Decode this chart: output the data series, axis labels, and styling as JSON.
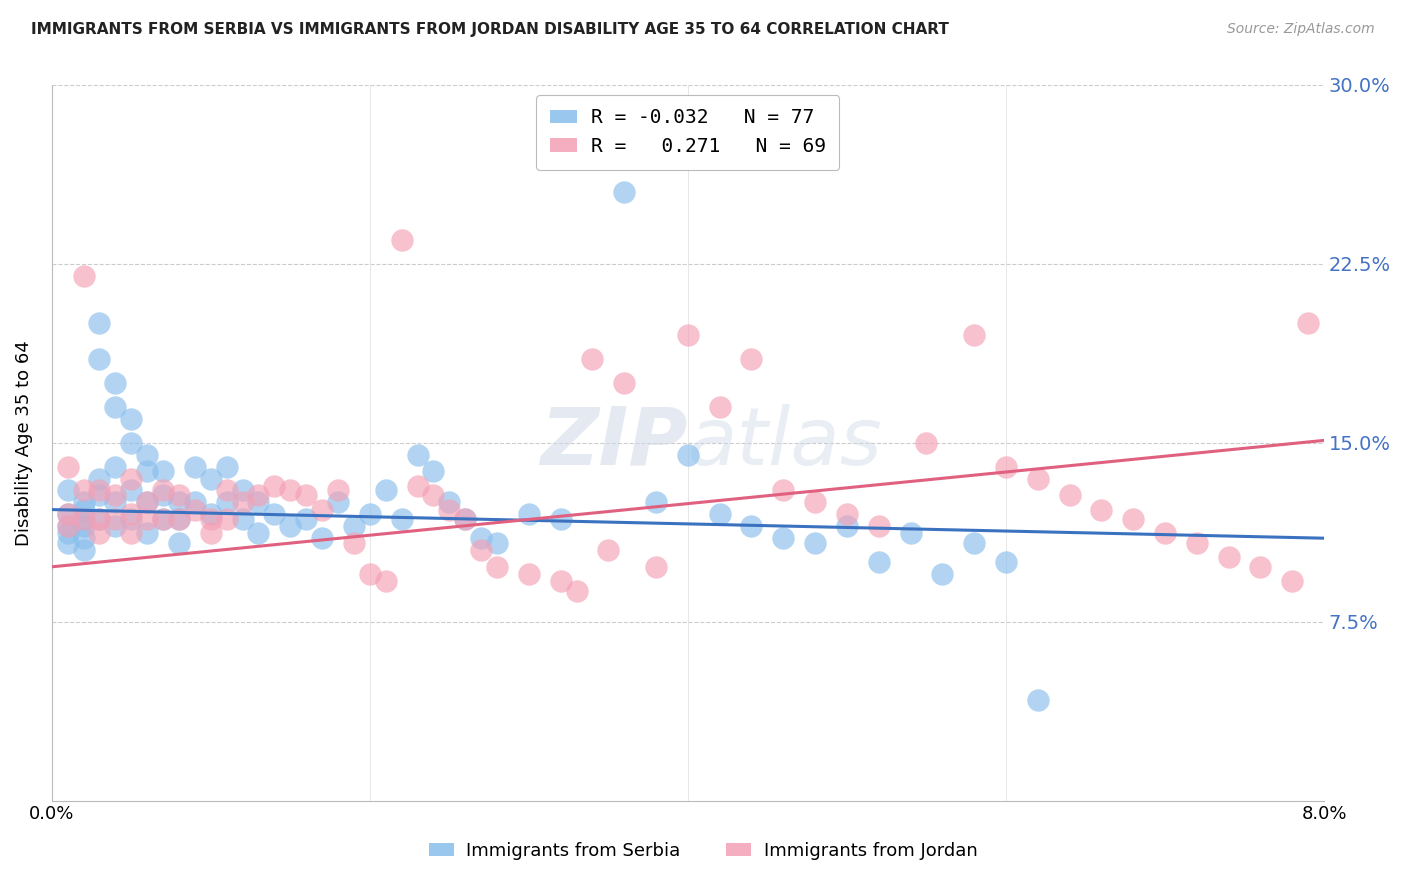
{
  "title": "IMMIGRANTS FROM SERBIA VS IMMIGRANTS FROM JORDAN DISABILITY AGE 35 TO 64 CORRELATION CHART",
  "source": "Source: ZipAtlas.com",
  "ylabel": "Disability Age 35 to 64",
  "xlim": [
    0.0,
    0.08
  ],
  "ylim": [
    0.0,
    0.3
  ],
  "yticks": [
    0.075,
    0.15,
    0.225,
    0.3
  ],
  "ytick_labels": [
    "7.5%",
    "15.0%",
    "22.5%",
    "30.0%"
  ],
  "legend_r_serbia": "-0.032",
  "legend_n_serbia": "77",
  "legend_r_jordan": "0.271",
  "legend_n_jordan": "69",
  "color_serbia": "#89BEEC",
  "color_jordan": "#F4A0B5",
  "line_color_serbia": "#3B72C0",
  "line_color_jordan": "#E06080",
  "background_color": "#ffffff",
  "serbia_line_x0": 0.0,
  "serbia_line_y0": 0.122,
  "serbia_line_x1": 0.08,
  "serbia_line_y1": 0.11,
  "jordan_line_x0": 0.0,
  "jordan_line_y0": 0.098,
  "jordan_line_x1": 0.08,
  "jordan_line_y1": 0.151,
  "serbia_x": [
    0.001,
    0.001,
    0.001,
    0.001,
    0.001,
    0.002,
    0.002,
    0.002,
    0.002,
    0.002,
    0.002,
    0.003,
    0.003,
    0.003,
    0.003,
    0.003,
    0.004,
    0.004,
    0.004,
    0.004,
    0.004,
    0.005,
    0.005,
    0.005,
    0.005,
    0.006,
    0.006,
    0.006,
    0.006,
    0.007,
    0.007,
    0.007,
    0.008,
    0.008,
    0.008,
    0.009,
    0.009,
    0.01,
    0.01,
    0.011,
    0.011,
    0.012,
    0.012,
    0.013,
    0.013,
    0.014,
    0.015,
    0.016,
    0.017,
    0.018,
    0.019,
    0.02,
    0.021,
    0.022,
    0.023,
    0.024,
    0.025,
    0.026,
    0.027,
    0.028,
    0.03,
    0.032,
    0.034,
    0.036,
    0.038,
    0.04,
    0.042,
    0.044,
    0.046,
    0.048,
    0.05,
    0.052,
    0.054,
    0.056,
    0.058,
    0.06,
    0.062
  ],
  "serbia_y": [
    0.12,
    0.115,
    0.112,
    0.108,
    0.13,
    0.118,
    0.125,
    0.11,
    0.105,
    0.115,
    0.122,
    0.2,
    0.185,
    0.135,
    0.128,
    0.118,
    0.175,
    0.165,
    0.14,
    0.125,
    0.115,
    0.16,
    0.15,
    0.13,
    0.118,
    0.145,
    0.138,
    0.125,
    0.112,
    0.138,
    0.128,
    0.118,
    0.125,
    0.118,
    0.108,
    0.14,
    0.125,
    0.135,
    0.12,
    0.14,
    0.125,
    0.13,
    0.118,
    0.125,
    0.112,
    0.12,
    0.115,
    0.118,
    0.11,
    0.125,
    0.115,
    0.12,
    0.13,
    0.118,
    0.145,
    0.138,
    0.125,
    0.118,
    0.11,
    0.108,
    0.12,
    0.118,
    0.285,
    0.255,
    0.125,
    0.145,
    0.12,
    0.115,
    0.11,
    0.108,
    0.115,
    0.1,
    0.112,
    0.095,
    0.108,
    0.1,
    0.042
  ],
  "jordan_x": [
    0.001,
    0.001,
    0.001,
    0.002,
    0.002,
    0.002,
    0.003,
    0.003,
    0.003,
    0.004,
    0.004,
    0.005,
    0.005,
    0.005,
    0.006,
    0.006,
    0.007,
    0.007,
    0.008,
    0.008,
    0.009,
    0.01,
    0.01,
    0.011,
    0.011,
    0.012,
    0.013,
    0.014,
    0.015,
    0.016,
    0.017,
    0.018,
    0.019,
    0.02,
    0.021,
    0.022,
    0.023,
    0.024,
    0.025,
    0.026,
    0.027,
    0.028,
    0.03,
    0.032,
    0.033,
    0.034,
    0.035,
    0.036,
    0.038,
    0.04,
    0.042,
    0.044,
    0.046,
    0.048,
    0.05,
    0.052,
    0.055,
    0.058,
    0.06,
    0.062,
    0.064,
    0.066,
    0.068,
    0.07,
    0.072,
    0.074,
    0.076,
    0.078,
    0.079
  ],
  "jordan_y": [
    0.14,
    0.12,
    0.115,
    0.22,
    0.13,
    0.118,
    0.13,
    0.118,
    0.112,
    0.128,
    0.118,
    0.135,
    0.12,
    0.112,
    0.125,
    0.118,
    0.13,
    0.118,
    0.128,
    0.118,
    0.122,
    0.118,
    0.112,
    0.13,
    0.118,
    0.125,
    0.128,
    0.132,
    0.13,
    0.128,
    0.122,
    0.13,
    0.108,
    0.095,
    0.092,
    0.235,
    0.132,
    0.128,
    0.122,
    0.118,
    0.105,
    0.098,
    0.095,
    0.092,
    0.088,
    0.185,
    0.105,
    0.175,
    0.098,
    0.195,
    0.165,
    0.185,
    0.13,
    0.125,
    0.12,
    0.115,
    0.15,
    0.195,
    0.14,
    0.135,
    0.128,
    0.122,
    0.118,
    0.112,
    0.108,
    0.102,
    0.098,
    0.092,
    0.2
  ]
}
